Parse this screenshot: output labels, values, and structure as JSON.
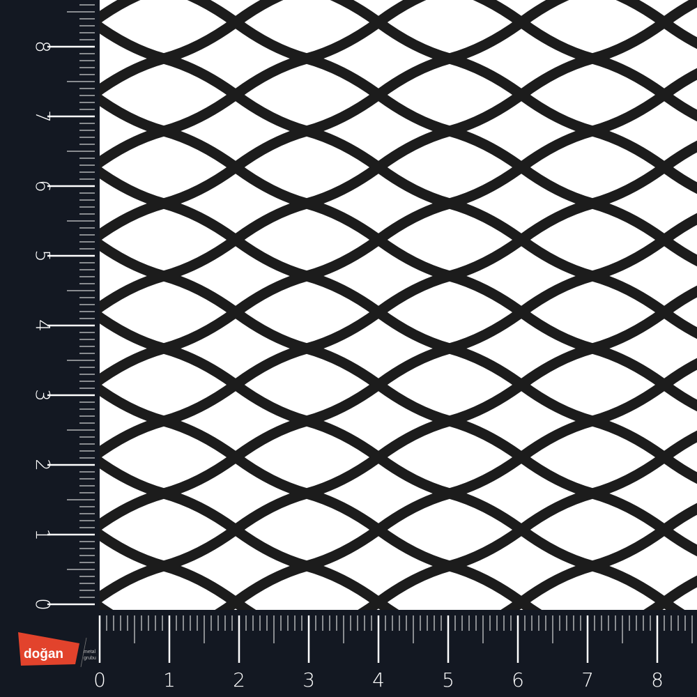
{
  "image": {
    "subject": "black expanded metal mesh",
    "mesh_color": "#1a1a1a",
    "background_color": "#131822"
  },
  "rulers": {
    "horizontal_labels": [
      "0",
      "1",
      "2",
      "3",
      "4",
      "5",
      "6",
      "7",
      "8"
    ],
    "vertical_labels": [
      "0",
      "1",
      "2",
      "3",
      "4",
      "5",
      "6",
      "7",
      "8"
    ],
    "minor_ticks_per_unit": 10
  },
  "logo": {
    "brand": "doğan",
    "line1": "metal",
    "line2": "grubu",
    "color": "#e2432c"
  }
}
